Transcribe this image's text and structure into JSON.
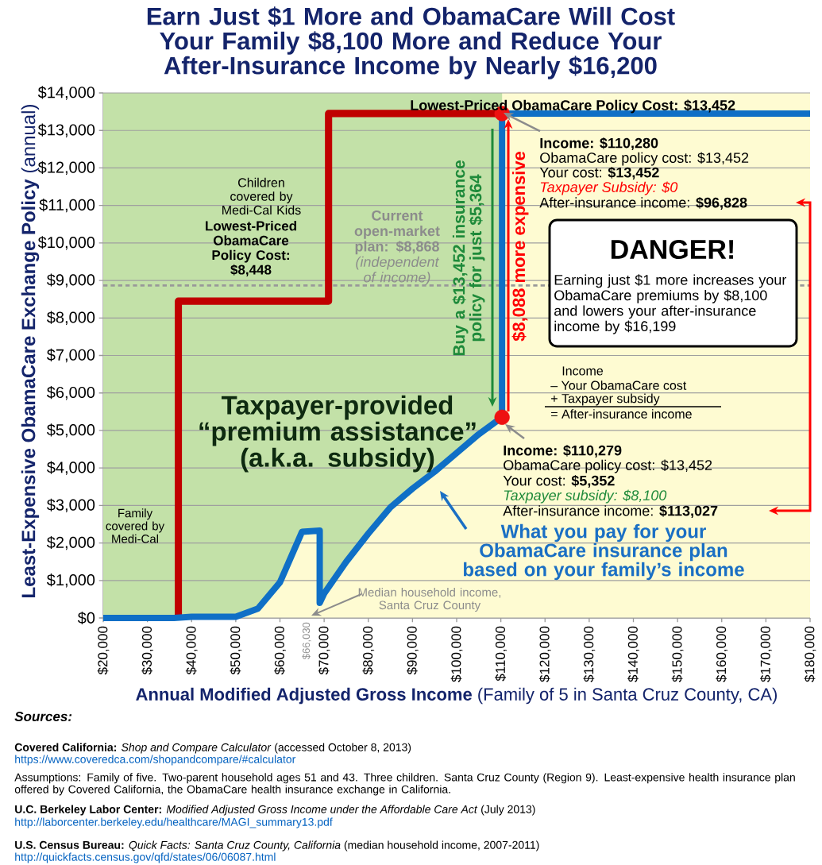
{
  "chart_data": {
    "type": "line",
    "title": "Earn Just $1 More and ObamaCare Will Cost Your Family $8,100 More and Reduce Your After-Insurance Income by Nearly $16,200",
    "xlabel": "**Annual Modified Adjusted Gross Income** (Family of 5 in Santa Cruz County, CA)",
    "ylabel": "**Least-Expensive ObamaCare Exchange Policy** (annual)",
    "series": [
      {
        "color": "#c00000",
        "x": [
          37000,
          37000,
          71000,
          71000,
          110280
        ],
        "values": [
          0,
          8448,
          8448,
          13452,
          13452
        ]
      },
      {
        "color": "#0f6fc6",
        "x": [
          20000,
          36000,
          40000,
          50000,
          55000,
          60000,
          65000,
          69000,
          69000,
          70000,
          75000,
          80000,
          85000,
          90000,
          95000,
          100000,
          105000,
          110279,
          110280,
          180000
        ],
        "values": [
          0,
          0,
          30,
          30,
          250,
          950,
          2300,
          2330,
          400,
          650,
          1500,
          2250,
          2950,
          3450,
          3900,
          4400,
          4900,
          5352,
          13452,
          13452
        ]
      },
      {
        "type": "scatter",
        "color": "#ee1111",
        "x": [
          110280,
          110279
        ],
        "values": [
          13452,
          5352
        ]
      }
    ],
    "xlim": [
      20000,
      180000
    ],
    "xticks": [
      {
        "value": 20000,
        "label": "$20,000"
      },
      {
        "value": 30000,
        "label": "$30,000"
      },
      {
        "value": 40000,
        "label": "$40,000"
      },
      {
        "value": 50000,
        "label": "$50,000"
      },
      {
        "value": 60000,
        "label": "$60,000"
      },
      {
        "value": 70000,
        "label": "$70,000"
      },
      {
        "value": 80000,
        "label": "$80,000"
      },
      {
        "value": 90000,
        "label": "$90,000"
      },
      {
        "value": 100000,
        "label": "$100,000"
      },
      {
        "value": 110000,
        "label": "$110,000"
      },
      {
        "value": 120000,
        "label": "$120,000"
      },
      {
        "value": 130000,
        "label": "$130,000"
      },
      {
        "value": 140000,
        "label": "$140,000"
      },
      {
        "value": 150000,
        "label": "$150,000"
      },
      {
        "value": 160000,
        "label": "$160,000"
      },
      {
        "value": 170000,
        "label": "$170,000"
      },
      {
        "value": 180000,
        "label": "$180,000"
      }
    ],
    "ylim": [
      0,
      14000
    ],
    "yticks": [
      {
        "value": 0,
        "label": "$0"
      },
      {
        "value": 1000,
        "label": "$1,000"
      },
      {
        "value": 2000,
        "label": "$2,000"
      },
      {
        "value": 3000,
        "label": "$3,000"
      },
      {
        "value": 4000,
        "label": "$4,000"
      },
      {
        "value": 5000,
        "label": "$5,000"
      },
      {
        "value": 6000,
        "label": "$6,000"
      },
      {
        "value": 7000,
        "label": "$7,000"
      },
      {
        "value": 8000,
        "label": "$8,000"
      },
      {
        "value": 9000,
        "label": "$9,000"
      },
      {
        "value": 10000,
        "label": "$10,000"
      },
      {
        "value": 11000,
        "label": "$11,000"
      },
      {
        "value": 12000,
        "label": "$12,000"
      },
      {
        "value": 13000,
        "label": "$13,000"
      },
      {
        "value": 14000,
        "label": "$14,000"
      }
    ],
    "grid": "y",
    "bands": [
      {
        "axis": "x",
        "from": 20000,
        "to": 110280,
        "color": "#c3e1a8"
      }
    ],
    "ref_lines": [
      {
        "axis": "y",
        "value": 8868,
        "color": "#999999",
        "line_style": "dashed"
      }
    ],
    "annotations": [
      {
        "text": "Lowest-Priced ObamaCare Policy Cost: $13,452",
        "x": 110280,
        "y": 13452
      },
      "Children covered by Medi-Cal Kids",
      "Lowest-Priced ObamaCare Policy Cost: $8,448",
      "**Current open-market plan: $8,868** *(independent of income)*",
      "Family covered by Medi-Cal",
      "Taxpayer-provided “premium assistance” (a.k.a. subsidy)",
      "What you pay for your ObamaCare insurance plan based on your family’s income",
      "Median household income, Santa Cruz County",
      {
        "text": "$66,030",
        "x": 66030,
        "y": 0
      },
      "Buy a $13,452 insurance policy for just $5,364",
      "$8,088 more expensive",
      "Income: $110,280",
      "ObamaCare policy cost: $13,452",
      "Your cost: **$13,452**",
      "Taxpayer Subsidy: $0",
      "After-insurance income: **$96,828**",
      "Income: $110,279",
      "ObamaCare policy cost: $13,452",
      "Your cost: **$5,352**",
      "Taxpayer subsidy: $8,100",
      "After-insurance income: **$113,027**",
      "DANGER!",
      "Earning just $1 more increases your ObamaCare premiums by $8,100 and lowers your after-insurance income by $16,199",
      "Income",
      "– Your ObamaCare cost",
      "+ Taxpayer subsidy",
      "= After-insurance income",
      "Sources:",
      "**Covered California:** *Shop and Compare Calculator* (accessed October 8, 2013)",
      "https://www.coveredca.com/shopandcompare/#calculator",
      "Assumptions:  Family of five. Two-parent household ages 51 and 43. Three children.  Santa Cruz County (Region 9). Least-expensive health insurance plan offered by Covered California, the ObamaCare health insurance exchange in California.",
      "**U.C. Berkeley Labor Center:** *Modified Adjusted Gross Income under the Affordable Care Act* (July 2013)",
      "http://laborcenter.berkeley.edu/healthcare/MAGI_summary13.pdf",
      "**U.S. Census Bureau:** *Quick Facts: Santa Cruz County, California* (median household income, 2007-2011)",
      "http://quickfacts.census.gov/qfd/states/06/06087.html"
    ]
  }
}
